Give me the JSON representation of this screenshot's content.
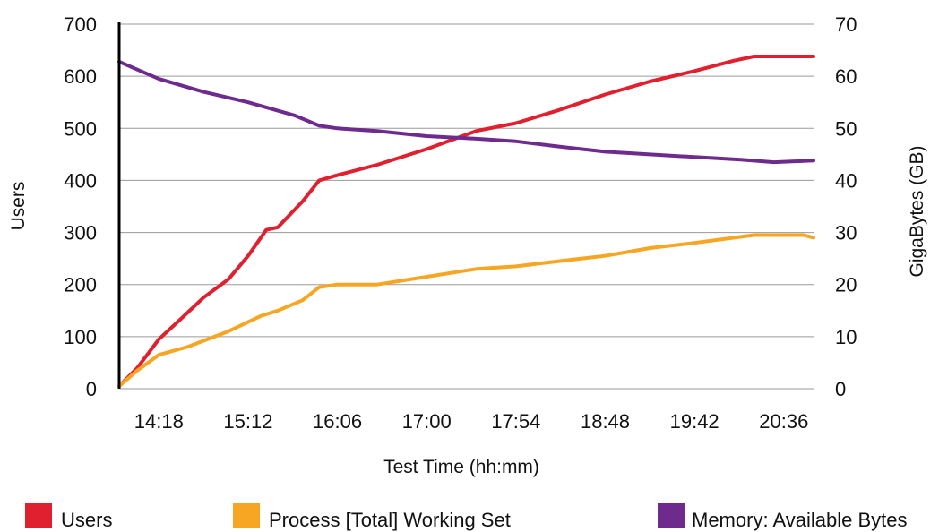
{
  "chart_data": {
    "type": "line",
    "xlabel": "Test Time (hh:mm)",
    "ylabel": "Users",
    "y2label": "GigaBytes (GB)",
    "xlim": [
      "13:54",
      "20:54"
    ],
    "ylim": [
      0,
      700
    ],
    "y2lim": [
      0,
      70
    ],
    "x_ticks": [
      "14:18",
      "15:12",
      "16:06",
      "17:00",
      "17:54",
      "18:48",
      "19:42",
      "20:36"
    ],
    "y_ticks": [
      0,
      100,
      200,
      300,
      400,
      500,
      600,
      700
    ],
    "y2_ticks": [
      0,
      10,
      20,
      30,
      40,
      50,
      60,
      70
    ],
    "grid": true,
    "legend_position": "bottom",
    "series": [
      {
        "name": "Users",
        "axis": "left",
        "color": "#e0202e",
        "points": [
          [
            "13:54",
            5
          ],
          [
            "14:05",
            40
          ],
          [
            "14:18",
            95
          ],
          [
            "14:30",
            130
          ],
          [
            "14:45",
            175
          ],
          [
            "15:00",
            210
          ],
          [
            "15:12",
            255
          ],
          [
            "15:23",
            305
          ],
          [
            "15:30",
            310
          ],
          [
            "15:45",
            360
          ],
          [
            "15:55",
            400
          ],
          [
            "16:06",
            410
          ],
          [
            "16:30",
            430
          ],
          [
            "17:00",
            460
          ],
          [
            "17:30",
            495
          ],
          [
            "17:54",
            510
          ],
          [
            "18:20",
            535
          ],
          [
            "18:48",
            565
          ],
          [
            "19:15",
            590
          ],
          [
            "19:42",
            610
          ],
          [
            "20:06",
            630
          ],
          [
            "20:18",
            638
          ],
          [
            "20:54",
            638
          ]
        ]
      },
      {
        "name": "Process [Total] Working Set",
        "axis": "right",
        "color": "#f6a623",
        "points": [
          [
            "13:54",
            0.5
          ],
          [
            "14:05",
            3.5
          ],
          [
            "14:18",
            6.5
          ],
          [
            "14:35",
            8
          ],
          [
            "15:00",
            11
          ],
          [
            "15:20",
            14
          ],
          [
            "15:30",
            15
          ],
          [
            "15:45",
            17
          ],
          [
            "15:55",
            19.5
          ],
          [
            "16:06",
            20
          ],
          [
            "16:30",
            20
          ],
          [
            "17:00",
            21.5
          ],
          [
            "17:30",
            23
          ],
          [
            "17:54",
            23.5
          ],
          [
            "18:20",
            24.5
          ],
          [
            "18:48",
            25.5
          ],
          [
            "19:15",
            27
          ],
          [
            "19:42",
            28
          ],
          [
            "20:06",
            29
          ],
          [
            "20:18",
            29.5
          ],
          [
            "20:48",
            29.5
          ],
          [
            "20:54",
            29
          ]
        ]
      },
      {
        "name": "Memory: Available Bytes",
        "axis": "right",
        "color": "#6e2a8d",
        "points": [
          [
            "13:54",
            62.8
          ],
          [
            "14:18",
            59.5
          ],
          [
            "14:45",
            57
          ],
          [
            "15:12",
            55
          ],
          [
            "15:40",
            52.5
          ],
          [
            "15:55",
            50.5
          ],
          [
            "16:06",
            50
          ],
          [
            "16:30",
            49.5
          ],
          [
            "17:00",
            48.5
          ],
          [
            "17:30",
            48
          ],
          [
            "17:54",
            47.5
          ],
          [
            "18:20",
            46.5
          ],
          [
            "18:48",
            45.5
          ],
          [
            "19:15",
            45
          ],
          [
            "19:42",
            44.5
          ],
          [
            "20:10",
            44
          ],
          [
            "20:30",
            43.5
          ],
          [
            "20:54",
            43.8
          ]
        ]
      }
    ]
  }
}
